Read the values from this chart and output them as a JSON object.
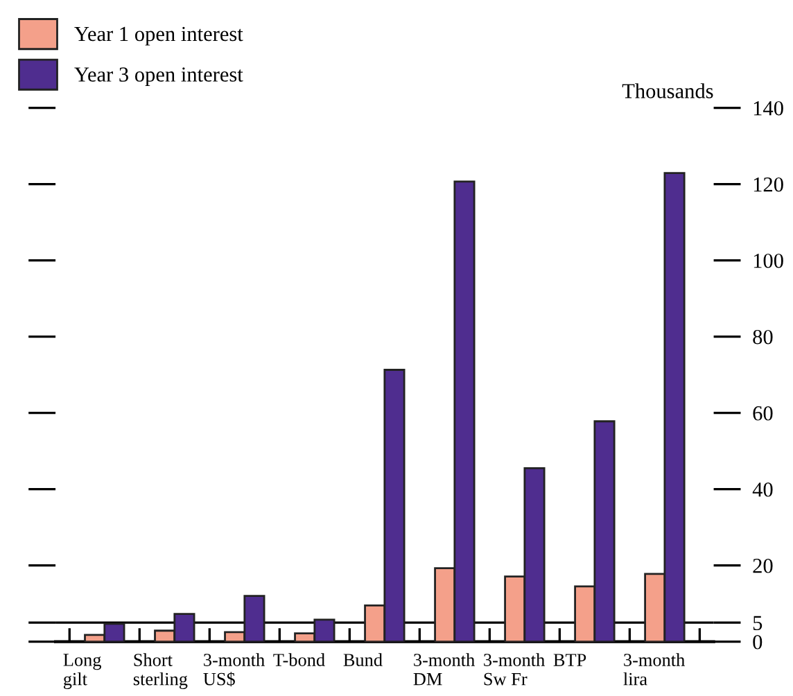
{
  "chart_data": {
    "type": "bar",
    "ylabel": "Thousands",
    "categories": [
      "Long\ngilt",
      "Short\nsterling",
      "3-month\nUS$",
      "T-bond",
      "Bund",
      "3-month\nDM",
      "3-month\nSw Fr",
      "BTP",
      "3-month\nlira"
    ],
    "series": [
      {
        "name": "Year 1 open interest",
        "color": "#f4a08a",
        "values": [
          1.8,
          2.9,
          2.5,
          2.2,
          9.5,
          19.3,
          17.1,
          14.5,
          17.8
        ]
      },
      {
        "name": "Year 3 open interest",
        "color": "#4f2d8f",
        "values": [
          4.7,
          7.3,
          12,
          5.8,
          71.3,
          120.7,
          45.5,
          57.8,
          122.9
        ]
      }
    ],
    "ylim": [
      0,
      140
    ],
    "yticks": [
      0,
      5,
      20,
      40,
      60,
      80,
      100,
      120,
      140
    ],
    "ref_lines": [
      {
        "axis": "y",
        "value": 5,
        "color": "#000000"
      }
    ],
    "grid": false,
    "legend": "top left"
  }
}
